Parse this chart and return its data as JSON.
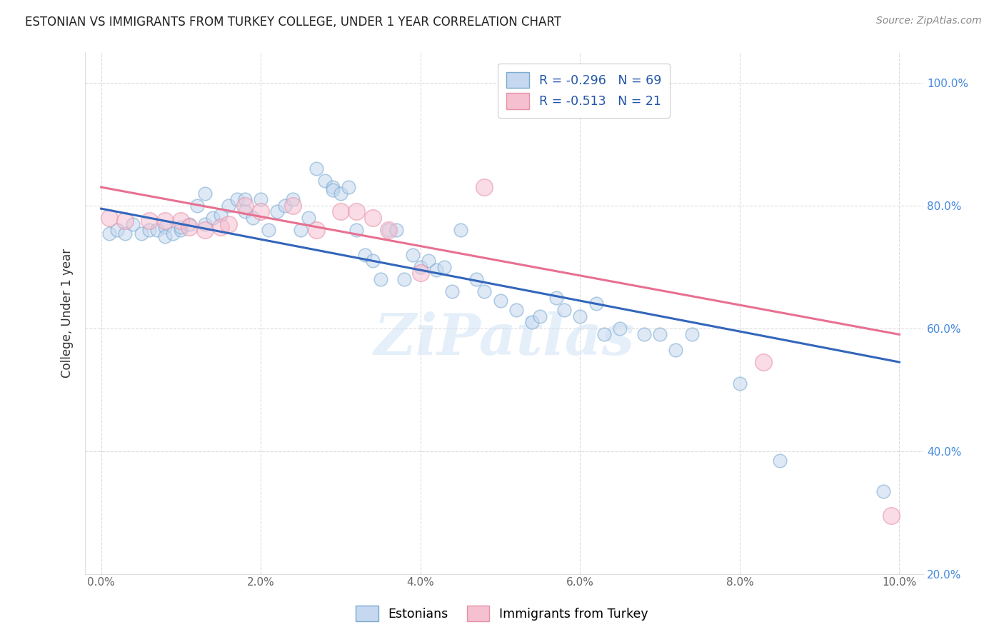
{
  "title": "ESTONIAN VS IMMIGRANTS FROM TURKEY COLLEGE, UNDER 1 YEAR CORRELATION CHART",
  "source": "Source: ZipAtlas.com",
  "ylabel_label": "College, Under 1 year",
  "watermark": "ZiPatlas",
  "legend_entries": [
    {
      "label": "R = -0.296   N = 69",
      "color": "#b8d0ea"
    },
    {
      "label": "R = -0.513   N = 21",
      "color": "#f5b8ca"
    }
  ],
  "legend_bottom": [
    "Estonians",
    "Immigrants from Turkey"
  ],
  "estonian_scatter": [
    [
      0.001,
      0.755
    ],
    [
      0.002,
      0.76
    ],
    [
      0.003,
      0.755
    ],
    [
      0.004,
      0.77
    ],
    [
      0.005,
      0.755
    ],
    [
      0.006,
      0.76
    ],
    [
      0.007,
      0.76
    ],
    [
      0.008,
      0.765
    ],
    [
      0.008,
      0.75
    ],
    [
      0.009,
      0.755
    ],
    [
      0.01,
      0.76
    ],
    [
      0.01,
      0.765
    ],
    [
      0.011,
      0.77
    ],
    [
      0.012,
      0.8
    ],
    [
      0.013,
      0.77
    ],
    [
      0.013,
      0.82
    ],
    [
      0.014,
      0.78
    ],
    [
      0.015,
      0.785
    ],
    [
      0.016,
      0.8
    ],
    [
      0.017,
      0.81
    ],
    [
      0.018,
      0.81
    ],
    [
      0.018,
      0.79
    ],
    [
      0.019,
      0.78
    ],
    [
      0.02,
      0.81
    ],
    [
      0.021,
      0.76
    ],
    [
      0.022,
      0.79
    ],
    [
      0.023,
      0.8
    ],
    [
      0.024,
      0.81
    ],
    [
      0.025,
      0.76
    ],
    [
      0.026,
      0.78
    ],
    [
      0.027,
      0.86
    ],
    [
      0.028,
      0.84
    ],
    [
      0.029,
      0.83
    ],
    [
      0.029,
      0.825
    ],
    [
      0.03,
      0.82
    ],
    [
      0.031,
      0.83
    ],
    [
      0.032,
      0.76
    ],
    [
      0.033,
      0.72
    ],
    [
      0.034,
      0.71
    ],
    [
      0.035,
      0.68
    ],
    [
      0.036,
      0.76
    ],
    [
      0.037,
      0.76
    ],
    [
      0.038,
      0.68
    ],
    [
      0.039,
      0.72
    ],
    [
      0.04,
      0.7
    ],
    [
      0.041,
      0.71
    ],
    [
      0.042,
      0.695
    ],
    [
      0.043,
      0.7
    ],
    [
      0.044,
      0.66
    ],
    [
      0.045,
      0.76
    ],
    [
      0.047,
      0.68
    ],
    [
      0.048,
      0.66
    ],
    [
      0.05,
      0.645
    ],
    [
      0.052,
      0.63
    ],
    [
      0.054,
      0.61
    ],
    [
      0.055,
      0.62
    ],
    [
      0.057,
      0.65
    ],
    [
      0.058,
      0.63
    ],
    [
      0.06,
      0.62
    ],
    [
      0.062,
      0.64
    ],
    [
      0.063,
      0.59
    ],
    [
      0.065,
      0.6
    ],
    [
      0.068,
      0.59
    ],
    [
      0.07,
      0.59
    ],
    [
      0.072,
      0.565
    ],
    [
      0.074,
      0.59
    ],
    [
      0.08,
      0.51
    ],
    [
      0.085,
      0.385
    ],
    [
      0.098,
      0.335
    ]
  ],
  "turkey_scatter": [
    [
      0.001,
      0.78
    ],
    [
      0.003,
      0.775
    ],
    [
      0.006,
      0.775
    ],
    [
      0.008,
      0.775
    ],
    [
      0.01,
      0.775
    ],
    [
      0.011,
      0.765
    ],
    [
      0.013,
      0.76
    ],
    [
      0.015,
      0.765
    ],
    [
      0.016,
      0.77
    ],
    [
      0.018,
      0.8
    ],
    [
      0.02,
      0.79
    ],
    [
      0.024,
      0.8
    ],
    [
      0.027,
      0.76
    ],
    [
      0.03,
      0.79
    ],
    [
      0.032,
      0.79
    ],
    [
      0.034,
      0.78
    ],
    [
      0.036,
      0.76
    ],
    [
      0.04,
      0.69
    ],
    [
      0.048,
      0.83
    ],
    [
      0.083,
      0.545
    ],
    [
      0.099,
      0.295
    ]
  ],
  "estonian_line_x": [
    0.0,
    0.1
  ],
  "estonian_line_y": [
    0.795,
    0.545
  ],
  "turkey_line_x": [
    0.0,
    0.1
  ],
  "turkey_line_y": [
    0.83,
    0.59
  ],
  "estonian_color_face": "#c5d8f0",
  "estonian_color_edge": "#7aaad0",
  "turkey_color_face": "#f5c0d0",
  "turkey_color_edge": "#e890a8",
  "estonian_line_color": "#3366bb",
  "turkey_line_color": "#e87090",
  "xlim": [
    -0.002,
    0.103
  ],
  "ylim": [
    0.2,
    1.05
  ],
  "x_ticks": [
    0.0,
    0.02,
    0.04,
    0.06,
    0.08,
    0.1
  ],
  "x_labels": [
    "0.0%",
    "2.0%",
    "4.0%",
    "6.0%",
    "8.0%",
    "10.0%"
  ],
  "y_ticks": [
    0.2,
    0.4,
    0.6,
    0.8,
    1.0
  ],
  "y_labels": [
    "20.0%",
    "40.0%",
    "60.0%",
    "80.0%",
    "100.0%"
  ],
  "scatter_size": 180,
  "scatter_alpha": 0.55,
  "background_color": "#ffffff",
  "grid_color": "#cccccc"
}
